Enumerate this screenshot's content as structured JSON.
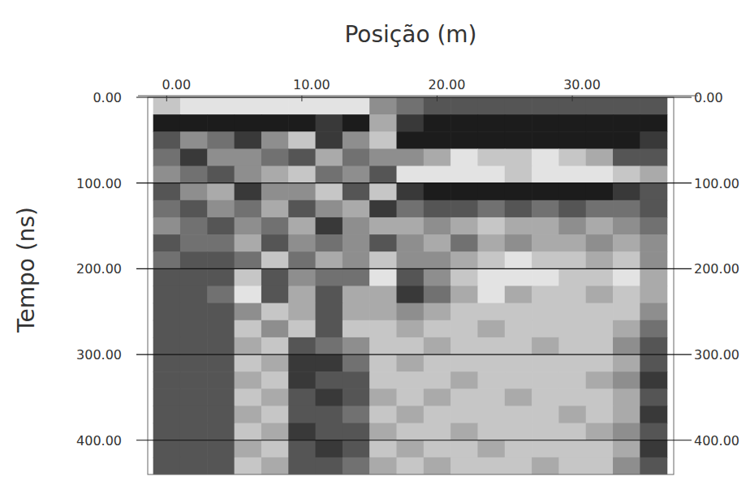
{
  "chart_data": {
    "type": "heatmap",
    "x_label": "Posição (m)",
    "y_label": "Tempo (ns)",
    "xlim": [
      -1.4,
      37.5
    ],
    "ylim": [
      0,
      440
    ],
    "xticks": [
      {
        "value": 0,
        "label": "0.00"
      },
      {
        "value": 10,
        "label": "10.00"
      },
      {
        "value": 20,
        "label": "20.00"
      },
      {
        "value": 30,
        "label": "30.00"
      }
    ],
    "yticks": [
      {
        "value": 0,
        "label": "0.00"
      },
      {
        "value": 100,
        "label": "100.00"
      },
      {
        "value": 200,
        "label": "200.00"
      },
      {
        "value": 300,
        "label": "300.00"
      },
      {
        "value": 400,
        "label": "400.00"
      }
    ],
    "grid": true,
    "colors": [
      "#000000",
      "#ffffff"
    ],
    "zlim": [
      0,
      9
    ],
    "x": [
      0,
      2,
      4,
      6,
      8,
      10,
      12,
      14,
      16,
      18,
      20,
      22,
      24,
      26,
      28,
      30,
      32,
      34,
      36
    ],
    "y": [
      10,
      30,
      50,
      70,
      90,
      110,
      130,
      150,
      170,
      190,
      210,
      230,
      250,
      270,
      290,
      310,
      330,
      350,
      370,
      390,
      410,
      430
    ],
    "cells": [
      [
        7,
        8,
        8,
        8,
        8,
        8,
        8,
        8,
        5,
        4,
        3,
        3,
        3,
        3,
        3,
        3,
        3,
        3,
        3
      ],
      [
        1,
        1,
        1,
        1,
        1,
        1,
        2,
        1,
        6,
        2,
        1,
        1,
        1,
        1,
        1,
        1,
        1,
        1,
        1
      ],
      [
        3,
        5,
        4,
        2,
        5,
        7,
        2,
        5,
        7,
        1,
        1,
        1,
        1,
        1,
        1,
        1,
        1,
        1,
        2
      ],
      [
        4,
        2,
        5,
        5,
        4,
        3,
        6,
        4,
        5,
        5,
        6,
        8,
        7,
        7,
        8,
        7,
        6,
        3,
        3
      ],
      [
        5,
        4,
        3,
        5,
        6,
        7,
        4,
        5,
        3,
        8,
        8,
        8,
        8,
        7,
        8,
        8,
        8,
        7,
        6
      ],
      [
        3,
        5,
        6,
        2,
        5,
        5,
        7,
        3,
        7,
        2,
        1,
        1,
        1,
        1,
        1,
        1,
        1,
        2,
        3
      ],
      [
        4,
        3,
        5,
        4,
        6,
        3,
        5,
        6,
        2,
        4,
        3,
        3,
        4,
        3,
        4,
        3,
        4,
        4,
        3
      ],
      [
        5,
        4,
        3,
        5,
        4,
        6,
        2,
        5,
        6,
        6,
        5,
        6,
        7,
        6,
        6,
        5,
        6,
        5,
        4
      ],
      [
        3,
        4,
        4,
        6,
        3,
        5,
        4,
        5,
        3,
        5,
        6,
        4,
        6,
        5,
        6,
        6,
        5,
        6,
        5
      ],
      [
        4,
        3,
        3,
        4,
        7,
        4,
        6,
        5,
        7,
        5,
        5,
        6,
        7,
        8,
        7,
        7,
        6,
        7,
        5
      ],
      [
        3,
        3,
        3,
        7,
        3,
        5,
        4,
        4,
        8,
        3,
        5,
        7,
        8,
        8,
        8,
        7,
        7,
        8,
        6
      ],
      [
        3,
        3,
        4,
        8,
        3,
        6,
        3,
        6,
        6,
        2,
        4,
        6,
        8,
        6,
        7,
        7,
        6,
        7,
        6
      ],
      [
        3,
        3,
        3,
        5,
        7,
        6,
        3,
        6,
        6,
        5,
        6,
        7,
        7,
        7,
        7,
        7,
        7,
        7,
        5
      ],
      [
        3,
        3,
        3,
        7,
        5,
        7,
        3,
        7,
        7,
        6,
        7,
        7,
        6,
        7,
        7,
        7,
        7,
        6,
        4
      ],
      [
        3,
        3,
        3,
        6,
        7,
        3,
        4,
        5,
        7,
        7,
        6,
        7,
        7,
        7,
        6,
        7,
        7,
        5,
        3
      ],
      [
        3,
        3,
        3,
        7,
        6,
        2,
        2,
        4,
        7,
        6,
        7,
        7,
        7,
        7,
        7,
        7,
        7,
        6,
        3
      ],
      [
        3,
        3,
        3,
        6,
        7,
        2,
        3,
        3,
        7,
        7,
        7,
        6,
        7,
        7,
        7,
        7,
        6,
        5,
        2
      ],
      [
        3,
        3,
        3,
        7,
        6,
        3,
        2,
        3,
        6,
        7,
        6,
        7,
        7,
        6,
        7,
        7,
        7,
        6,
        3
      ],
      [
        3,
        3,
        3,
        6,
        7,
        3,
        3,
        4,
        7,
        6,
        7,
        7,
        7,
        7,
        7,
        6,
        7,
        6,
        2
      ],
      [
        3,
        3,
        3,
        7,
        6,
        2,
        3,
        3,
        6,
        7,
        7,
        6,
        7,
        7,
        7,
        7,
        6,
        5,
        3
      ],
      [
        3,
        3,
        3,
        6,
        7,
        3,
        2,
        3,
        7,
        6,
        7,
        7,
        6,
        7,
        7,
        7,
        7,
        6,
        2
      ],
      [
        3,
        3,
        3,
        7,
        6,
        3,
        3,
        4,
        6,
        7,
        6,
        7,
        7,
        7,
        6,
        7,
        7,
        5,
        3
      ]
    ]
  }
}
